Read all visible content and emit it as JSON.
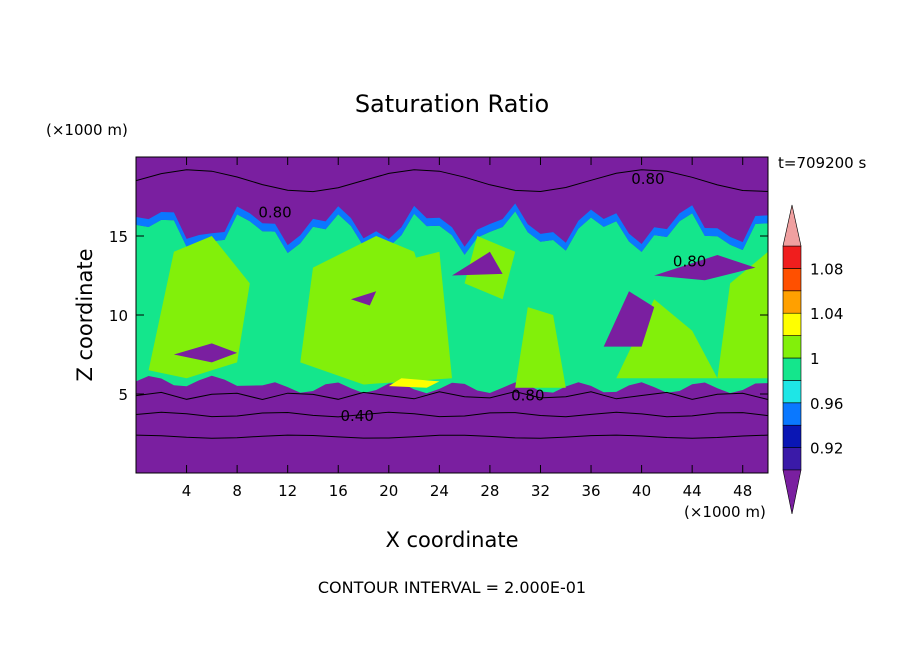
{
  "chart_data": {
    "type": "contour",
    "title": "Saturation Ratio",
    "xlabel": "X coordinate",
    "ylabel": "Z coordinate",
    "x_unit": "(×1000 m)",
    "y_unit": "(×1000 m)",
    "time_label": "t=709200 s",
    "footer": "CONTOUR INTERVAL = 2.000E-01",
    "xlim": [
      0,
      50
    ],
    "ylim": [
      0,
      20
    ],
    "x_ticks": [
      4,
      8,
      12,
      16,
      20,
      24,
      28,
      32,
      36,
      40,
      44,
      48
    ],
    "y_ticks": [
      5,
      10,
      15
    ],
    "contour_labels": [
      {
        "text": "0.80",
        "x": 11,
        "y": 16.5
      },
      {
        "text": "0.80",
        "x": 40.5,
        "y": 18.6
      },
      {
        "text": "0.80",
        "x": 31,
        "y": 4.9
      },
      {
        "text": "0.40",
        "x": 17.5,
        "y": 3.6
      },
      {
        "text": "0.80",
        "x": 43.8,
        "y": 13.4
      }
    ],
    "colorbar": {
      "levels": [
        0.9,
        0.92,
        0.94,
        0.96,
        0.98,
        1.0,
        1.02,
        1.04,
        1.06,
        1.08,
        1.1
      ],
      "tick_labels": [
        {
          "value": 0.92,
          "label": "0.92"
        },
        {
          "value": 0.96,
          "label": "0.96"
        },
        {
          "value": 1.0,
          "label": "1"
        },
        {
          "value": 1.04,
          "label": "1.04"
        },
        {
          "value": 1.08,
          "label": "1.08"
        }
      ],
      "colors": {
        "under": "#7a1fa0",
        "bands": [
          "#3a1aa8",
          "#0a16b4",
          "#0a78ff",
          "#1ee6e6",
          "#14e68c",
          "#82f00a",
          "#ffff00",
          "#ffa000",
          "#ff5000",
          "#f01e1e"
        ],
        "over": "#f0a0a0"
      }
    },
    "regions": {
      "dry_color": "#7a1fa0",
      "moist_color": "#14e68c",
      "super_color": "#82f00a"
    }
  }
}
